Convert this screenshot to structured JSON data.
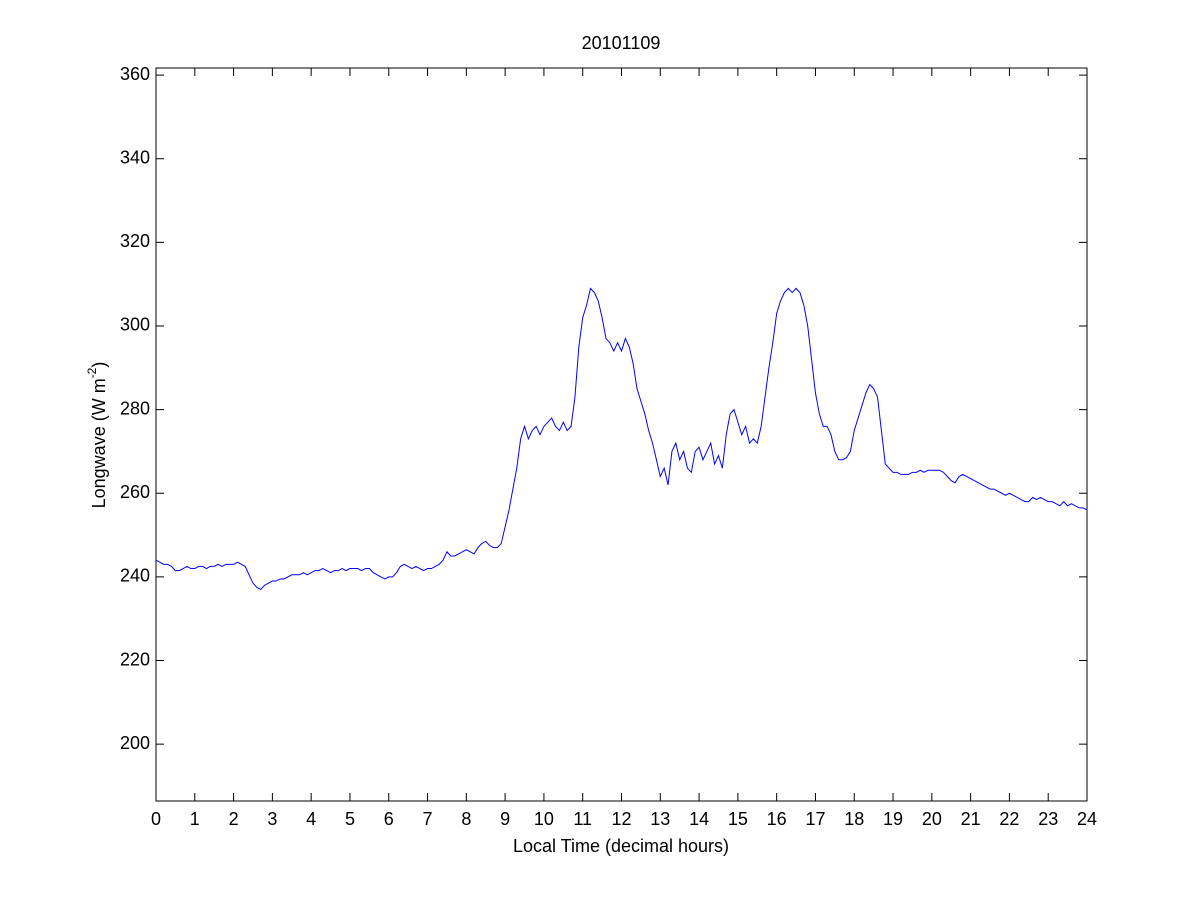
{
  "chart_data": {
    "type": "line",
    "title": "20101109",
    "xlabel": "Local Time (decimal hours)",
    "ylabel": {
      "text": "Longwave (W m",
      "superscript": "-2",
      "suffix": ")"
    },
    "color": "#0000ff",
    "xlim": [
      0,
      24
    ],
    "ylim": [
      186.4,
      361.7
    ],
    "xticks": [
      0,
      1,
      2,
      3,
      4,
      5,
      6,
      7,
      8,
      9,
      10,
      11,
      12,
      13,
      14,
      15,
      16,
      17,
      18,
      19,
      20,
      21,
      22,
      23,
      24
    ],
    "yticks": [
      200,
      220,
      240,
      260,
      280,
      300,
      320,
      340,
      360
    ],
    "x": [
      0,
      0.1,
      0.2,
      0.3,
      0.4,
      0.5,
      0.6,
      0.7,
      0.8,
      0.9,
      1,
      1.1,
      1.2,
      1.3,
      1.4,
      1.5,
      1.6,
      1.7,
      1.8,
      1.9,
      2,
      2.1,
      2.2,
      2.3,
      2.4,
      2.5,
      2.6,
      2.7,
      2.8,
      2.9,
      3,
      3.1,
      3.2,
      3.3,
      3.4,
      3.5,
      3.6,
      3.7,
      3.8,
      3.9,
      4,
      4.1,
      4.2,
      4.3,
      4.4,
      4.5,
      4.6,
      4.7,
      4.8,
      4.9,
      5,
      5.1,
      5.2,
      5.3,
      5.4,
      5.5,
      5.6,
      5.7,
      5.8,
      5.9,
      6,
      6.1,
      6.2,
      6.3,
      6.4,
      6.5,
      6.6,
      6.7,
      6.8,
      6.9,
      7,
      7.1,
      7.2,
      7.3,
      7.4,
      7.5,
      7.6,
      7.7,
      7.8,
      7.9,
      8,
      8.1,
      8.2,
      8.3,
      8.4,
      8.5,
      8.6,
      8.7,
      8.8,
      8.9,
      9,
      9.1,
      9.2,
      9.3,
      9.4,
      9.5,
      9.6,
      9.7,
      9.8,
      9.9,
      10,
      10.1,
      10.2,
      10.3,
      10.4,
      10.5,
      10.6,
      10.7,
      10.8,
      10.9,
      11,
      11.1,
      11.2,
      11.3,
      11.4,
      11.5,
      11.6,
      11.7,
      11.8,
      11.9,
      12,
      12.1,
      12.2,
      12.3,
      12.4,
      12.5,
      12.6,
      12.7,
      12.8,
      12.9,
      13,
      13.1,
      13.2,
      13.3,
      13.4,
      13.5,
      13.6,
      13.7,
      13.8,
      13.9,
      14,
      14.1,
      14.2,
      14.3,
      14.4,
      14.5,
      14.6,
      14.7,
      14.8,
      14.9,
      15,
      15.1,
      15.2,
      15.3,
      15.4,
      15.5,
      15.6,
      15.7,
      15.8,
      15.9,
      16,
      16.1,
      16.2,
      16.3,
      16.4,
      16.5,
      16.6,
      16.7,
      16.8,
      16.9,
      17,
      17.1,
      17.2,
      17.3,
      17.4,
      17.5,
      17.6,
      17.7,
      17.8,
      17.9,
      18,
      18.1,
      18.2,
      18.3,
      18.4,
      18.5,
      18.6,
      18.7,
      18.8,
      18.9,
      19,
      19.1,
      19.2,
      19.3,
      19.4,
      19.5,
      19.6,
      19.7,
      19.8,
      19.9,
      20,
      20.1,
      20.2,
      20.3,
      20.4,
      20.5,
      20.6,
      20.7,
      20.8,
      20.9,
      21,
      21.1,
      21.2,
      21.3,
      21.4,
      21.5,
      21.6,
      21.7,
      21.8,
      21.9,
      22,
      22.1,
      22.2,
      22.3,
      22.4,
      22.5,
      22.6,
      22.7,
      22.8,
      22.9,
      23,
      23.1,
      23.2,
      23.3,
      23.4,
      23.5,
      23.6,
      23.7,
      23.8,
      23.9,
      24
    ],
    "values": [
      244,
      243.5,
      243,
      243,
      242.5,
      241.5,
      241.5,
      242,
      242.5,
      242,
      242,
      242.5,
      242.5,
      242,
      242.5,
      242.5,
      243,
      242.5,
      243,
      243,
      243,
      243.5,
      243,
      242.5,
      240.5,
      238.5,
      237.5,
      237,
      238,
      238.5,
      239,
      239,
      239.5,
      239.5,
      240,
      240.5,
      240.5,
      240.5,
      241,
      240.5,
      241,
      241.5,
      241.5,
      242,
      241.5,
      241,
      241.5,
      241.5,
      242,
      241.5,
      242,
      242,
      242,
      241.5,
      242,
      242,
      241,
      240.5,
      240,
      239.5,
      240,
      240,
      241,
      242.5,
      243,
      242.5,
      242,
      242.5,
      242,
      241.5,
      242,
      242,
      242.5,
      243,
      244,
      246,
      245,
      245,
      245.5,
      246,
      246.5,
      246,
      245.5,
      247,
      248,
      248.5,
      247.5,
      247,
      247,
      248,
      252,
      256,
      261,
      266,
      273,
      276,
      273,
      275,
      276,
      274,
      276,
      277,
      278,
      276,
      275,
      277,
      275,
      276,
      283,
      295,
      302,
      305,
      309,
      308,
      306,
      302,
      297,
      296,
      294,
      296,
      294,
      297,
      295,
      291,
      285,
      282,
      279,
      275,
      272,
      268,
      264,
      266,
      262,
      270,
      272,
      268,
      270,
      266,
      265,
      270,
      271,
      268,
      270,
      272,
      267,
      269,
      266,
      274,
      279,
      280,
      277,
      274,
      276,
      272,
      273,
      272,
      276,
      283,
      290,
      296,
      303,
      306,
      308,
      309,
      308,
      309,
      308,
      305,
      300,
      292,
      284,
      279,
      276,
      276,
      274,
      270,
      268,
      268,
      268.5,
      270,
      275,
      278,
      281,
      284,
      286,
      285,
      283,
      275,
      267,
      266,
      265,
      265,
      264.5,
      264.5,
      264.5,
      265,
      265,
      265.5,
      265,
      265.5,
      265.5,
      265.5,
      265.5,
      265,
      264,
      263,
      262.5,
      264,
      264.5,
      264,
      263.5,
      263,
      262.5,
      262,
      261.5,
      261,
      261,
      260.5,
      260,
      259.5,
      260,
      259.5,
      259,
      258.5,
      258,
      258,
      259,
      258.5,
      259,
      258.5,
      258,
      258,
      257.5,
      257,
      258,
      257,
      257.5,
      257,
      256.5,
      256.5,
      256
    ]
  }
}
